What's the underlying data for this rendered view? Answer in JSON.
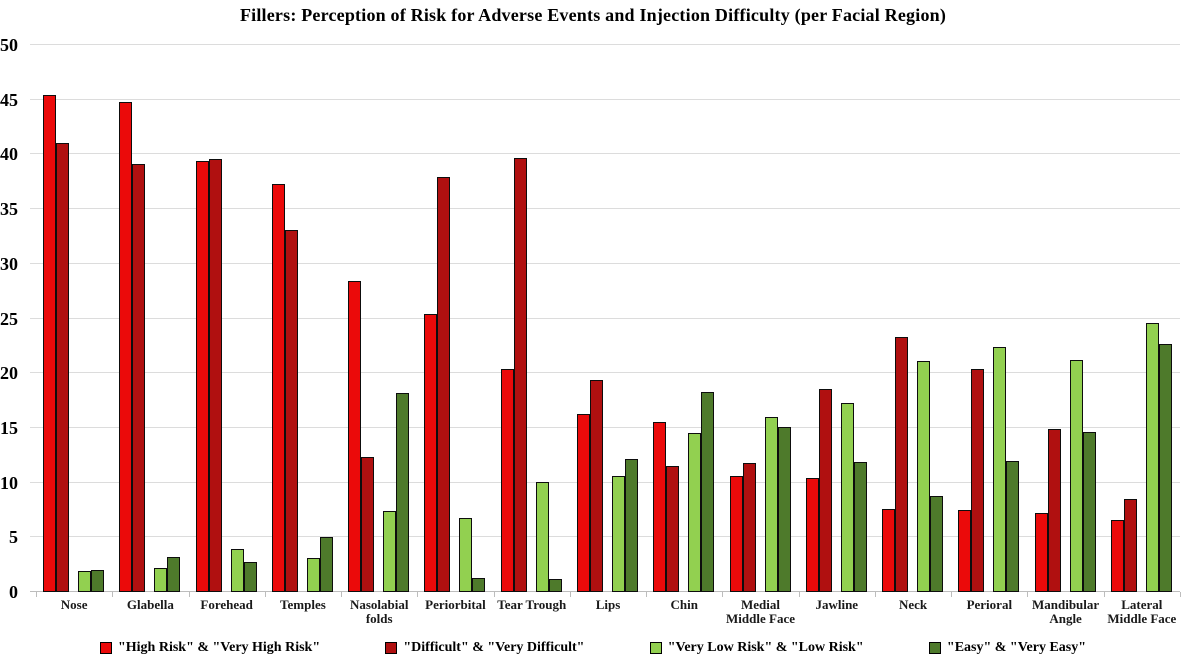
{
  "title": "Fillers: Perception of Risk for Adverse Events and Injection Difficulty (per Facial Region)",
  "colors": {
    "background": "#ffffff",
    "gridline": "#dcdcdc",
    "axis_line": "#bdbdbd",
    "bar_outline": "#0d0d0d",
    "series": [
      "#eb0a0a",
      "#b01010",
      "#92d050",
      "#4e7a2b"
    ]
  },
  "chart_data": {
    "type": "bar",
    "title": "Fillers: Perception of Risk for Adverse Events and Injection Difficulty (per Facial Region)",
    "xlabel": "",
    "ylabel": "",
    "ylim": [
      0,
      50
    ],
    "yticks": [
      0,
      5,
      10,
      15,
      20,
      25,
      30,
      35,
      40,
      45,
      50
    ],
    "grid": true,
    "legend_position": "bottom",
    "categories": [
      "Nose",
      "Glabella",
      "Forehead",
      "Temples",
      "Nasolabial folds",
      "Periorbital",
      "Tear Trough",
      "Lips",
      "Chin",
      "Medial Middle Face",
      "Jawline",
      "Neck",
      "Perioral",
      "Mandibular Angle",
      "Lateral Middle Face"
    ],
    "series": [
      {
        "name": "\"High Risk\" & \"Very High Risk\"",
        "color": "#eb0a0a",
        "values": [
          45.4,
          44.8,
          39.4,
          37.3,
          28.4,
          25.4,
          20.4,
          16.3,
          15.5,
          10.6,
          10.4,
          7.6,
          7.5,
          7.2,
          6.6
        ]
      },
      {
        "name": "\"Difficult\" & \"Very Difficult\"",
        "color": "#b01010",
        "values": [
          41.0,
          39.1,
          39.6,
          33.1,
          12.3,
          37.9,
          39.7,
          19.4,
          11.5,
          11.8,
          18.6,
          23.3,
          20.4,
          14.9,
          8.5
        ]
      },
      {
        "name": "\"Very Low Risk\" & \"Low Risk\"",
        "color": "#92d050",
        "values": [
          1.9,
          2.2,
          3.9,
          3.1,
          7.4,
          6.8,
          10.1,
          10.6,
          14.5,
          16.0,
          17.3,
          21.1,
          22.4,
          21.2,
          24.6
        ]
      },
      {
        "name": "\"Easy\" & \"Very Easy\"",
        "color": "#4e7a2b",
        "values": [
          2.0,
          3.2,
          2.7,
          5.0,
          18.2,
          1.3,
          1.2,
          12.2,
          18.3,
          15.1,
          11.9,
          8.8,
          12.0,
          14.6,
          22.7
        ]
      }
    ]
  }
}
